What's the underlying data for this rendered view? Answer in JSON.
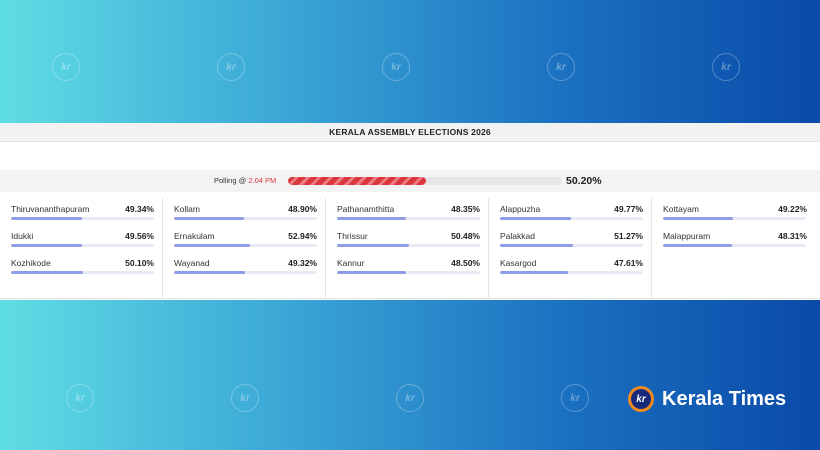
{
  "watermark": {
    "text": "kr"
  },
  "panel": {
    "title": "KERALA ASSEMBLY ELECTIONS 2026",
    "polling": {
      "prefix": "Polling @",
      "time": "2.04 PM",
      "percent_label": "50.20%",
      "percent": 50.2
    },
    "columns": [
      {
        "districts": [
          {
            "name": "Thiruvananthapuram",
            "value": "49.34%",
            "percent": 49.34
          },
          {
            "name": "Idukki",
            "value": "49.56%",
            "percent": 49.56
          },
          {
            "name": "Kozhikode",
            "value": "50.10%",
            "percent": 50.1
          }
        ]
      },
      {
        "districts": [
          {
            "name": "Kollam",
            "value": "48.90%",
            "percent": 48.9
          },
          {
            "name": "Ernakulam",
            "value": "52.94%",
            "percent": 52.94
          },
          {
            "name": "Wayanad",
            "value": "49.32%",
            "percent": 49.32
          }
        ]
      },
      {
        "districts": [
          {
            "name": "Pathanamthitta",
            "value": "48.35%",
            "percent": 48.35
          },
          {
            "name": "Thrissur",
            "value": "50.48%",
            "percent": 50.48
          },
          {
            "name": "Kannur",
            "value": "48.50%",
            "percent": 48.5
          }
        ]
      },
      {
        "districts": [
          {
            "name": "Alappuzha",
            "value": "49.77%",
            "percent": 49.77
          },
          {
            "name": "Palakkad",
            "value": "51.27%",
            "percent": 51.27
          },
          {
            "name": "Kasargod",
            "value": "47.61%",
            "percent": 47.61
          }
        ]
      },
      {
        "districts": [
          {
            "name": "Kottayam",
            "value": "49.22%",
            "percent": 49.22
          },
          {
            "name": "Malappuram",
            "value": "48.31%",
            "percent": 48.31
          }
        ]
      }
    ]
  },
  "brand": {
    "name": "Kerala Times",
    "mark": "kr"
  },
  "colors": {
    "accent": "#d9363e",
    "bar": "#8f9ce6",
    "logo_orange": "#f28a1e",
    "logo_navy": "#1a2a7a"
  }
}
